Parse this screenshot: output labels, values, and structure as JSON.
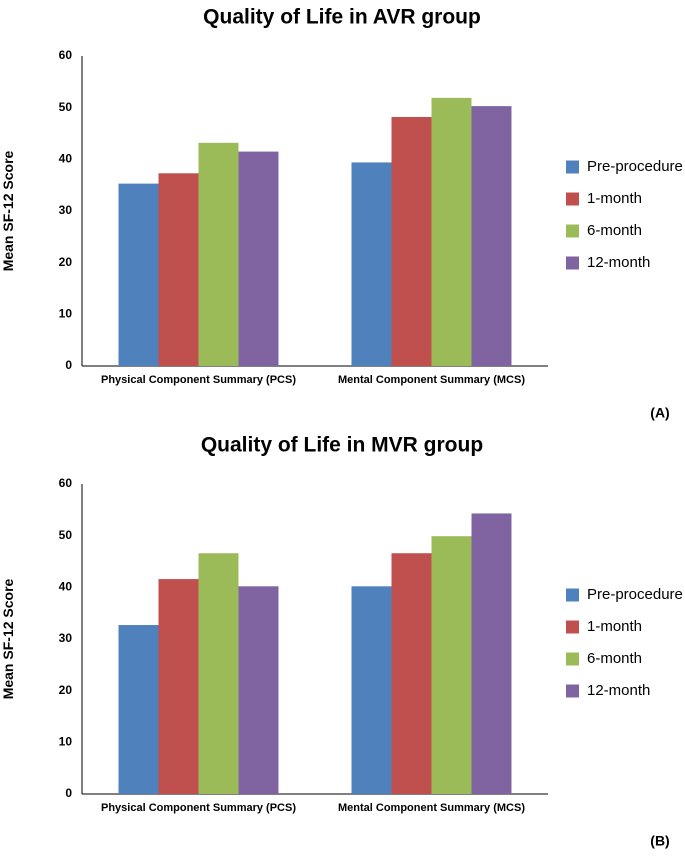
{
  "chart_data": [
    {
      "type": "bar",
      "title": "Quality of Life in AVR group",
      "ylabel": "Mean SF-12 Score",
      "xlabel": "",
      "ylim": [
        0,
        60
      ],
      "yticks": [
        0,
        10,
        20,
        30,
        40,
        50,
        60
      ],
      "categories": [
        "Physical Component Summary (PCS)",
        "Mental Component Summary (MCS)"
      ],
      "series": [
        {
          "name": "Pre-procedure",
          "color": "#4f81bd",
          "values": [
            35.3,
            39.4
          ]
        },
        {
          "name": "1-month",
          "color": "#c0504d",
          "values": [
            37.3,
            48.2
          ]
        },
        {
          "name": "6-month",
          "color": "#9bbb59",
          "values": [
            43.2,
            51.9
          ]
        },
        {
          "name": "12-month",
          "color": "#8064a2",
          "values": [
            41.5,
            50.3
          ]
        }
      ],
      "legend_position": "right",
      "panel_label": "(A)"
    },
    {
      "type": "bar",
      "title": "Quality of Life in MVR group",
      "ylabel": "Mean SF-12 Score",
      "xlabel": "",
      "ylim": [
        0,
        60
      ],
      "yticks": [
        0,
        10,
        20,
        30,
        40,
        50,
        60
      ],
      "categories": [
        "Physical Component Summary (PCS)",
        "Mental Component Summary (MCS)"
      ],
      "series": [
        {
          "name": "Pre-procedure",
          "color": "#4f81bd",
          "values": [
            32.7,
            40.2
          ]
        },
        {
          "name": "1-month",
          "color": "#c0504d",
          "values": [
            41.6,
            46.6
          ]
        },
        {
          "name": "6-month",
          "color": "#9bbb59",
          "values": [
            46.6,
            49.9
          ]
        },
        {
          "name": "12-month",
          "color": "#8064a2",
          "values": [
            40.2,
            54.3
          ]
        }
      ],
      "legend_position": "right",
      "panel_label": "(B)"
    }
  ]
}
